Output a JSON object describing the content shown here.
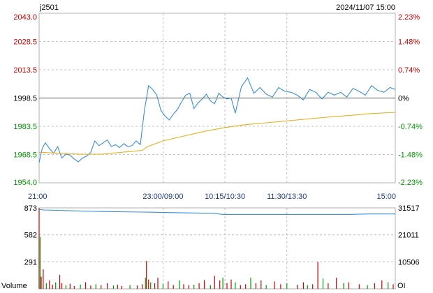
{
  "header": {
    "symbol": "j2501",
    "datetime": "2024/11/07 15:00"
  },
  "colors": {
    "price_line": "#3a8fd8",
    "avg_line": "#e8b020",
    "up": "#cc0000",
    "down": "#009900",
    "flat": "#000000",
    "grid": "#b0b0b0",
    "axis_time": "#1e3a8a",
    "open_interest": "#3a8fd8"
  },
  "chart_data": [
    {
      "type": "line",
      "title": "",
      "prev_close": 1998.5,
      "ylim": [
        1954.0,
        2043.0
      ],
      "y_ticks": [
        {
          "price": "2043.0",
          "pct": "2.23%",
          "dir": "up"
        },
        {
          "price": "2028.5",
          "pct": "1.48%",
          "dir": "up"
        },
        {
          "price": "2013.5",
          "pct": "0.74%",
          "dir": "up"
        },
        {
          "price": "1998.5",
          "pct": "0%",
          "dir": "flat"
        },
        {
          "price": "1983.5",
          "pct": "-0.74%",
          "dir": "down"
        },
        {
          "price": "1968.5",
          "pct": "-1.48%",
          "dir": "down"
        },
        {
          "price": "1954.0",
          "pct": "-2.23%",
          "dir": "down"
        }
      ],
      "x_ticks": [
        "21:00",
        "23:00/09:00",
        "10:15/10:30",
        "11:30/13:30",
        "15:00"
      ],
      "session_points": 345,
      "series": [
        {
          "role": "price",
          "x": [
            0,
            3,
            6,
            10,
            14,
            18,
            22,
            26,
            30,
            34,
            38,
            42,
            46,
            50,
            54,
            58,
            62,
            66,
            70,
            74,
            78,
            82,
            86,
            90,
            94,
            98,
            102,
            106,
            110,
            114,
            118,
            122,
            126,
            130,
            134,
            138,
            142,
            146,
            150,
            154,
            158,
            162,
            166,
            170,
            174,
            178,
            182,
            186,
            190,
            196,
            202,
            208,
            214,
            220,
            226,
            232,
            238,
            244,
            250,
            256,
            262,
            268,
            274,
            280,
            286,
            292,
            298,
            304,
            310,
            316,
            322,
            328,
            334,
            340,
            345
          ],
          "values": [
            1964.5,
            1972.0,
            1975.0,
            1972.0,
            1969.5,
            1973.0,
            1967.0,
            1969.0,
            1968.5,
            1966.5,
            1965.0,
            1967.0,
            1968.0,
            1970.0,
            1976.0,
            1973.5,
            1975.0,
            1976.5,
            1973.0,
            1974.0,
            1972.5,
            1974.5,
            1973.0,
            1973.5,
            1976.0,
            1974.0,
            1992.0,
            2005.0,
            2003.0,
            2000.0,
            1992.0,
            1989.0,
            1987.0,
            1990.0,
            1992.5,
            1996.5,
            2000.0,
            2001.0,
            1993.0,
            1996.0,
            1998.0,
            2000.5,
            1997.0,
            1995.5,
            2001.0,
            1999.0,
            1998.0,
            1998.5,
            1990.5,
            2004.5,
            2009.0,
            2001.0,
            2004.0,
            2000.5,
            1999.0,
            2004.0,
            2002.0,
            2001.5,
            2000.0,
            1997.5,
            2003.0,
            2001.5,
            1998.0,
            2001.5,
            2000.0,
            2001.5,
            1999.0,
            2003.5,
            2002.0,
            2000.0,
            2005.0,
            2002.5,
            2001.5,
            2004.0,
            2003.0
          ]
        },
        {
          "role": "average",
          "x": [
            0,
            20,
            40,
            60,
            80,
            100,
            105,
            120,
            140,
            160,
            180,
            200,
            220,
            240,
            260,
            280,
            300,
            320,
            345
          ],
          "values": [
            1970.0,
            1969.5,
            1969.0,
            1969.0,
            1970.0,
            1971.0,
            1973.0,
            1976.0,
            1978.5,
            1981.0,
            1983.0,
            1984.5,
            1985.5,
            1986.5,
            1987.5,
            1988.5,
            1989.3,
            1990.3,
            1991.0
          ]
        }
      ]
    },
    {
      "type": "bar",
      "title": "",
      "ylabel": "Volume",
      "right_label": "OI",
      "ylim": [
        0,
        873
      ],
      "y_ticks_left": [
        "873",
        "582",
        "291"
      ],
      "y_ticks_right": [
        "31517",
        "21011",
        "10506"
      ],
      "open_interest": {
        "ylim": [
          0,
          31517
        ],
        "x": [
          0,
          5,
          30,
          60,
          100,
          105,
          140,
          170,
          178,
          200,
          260,
          300,
          320,
          345
        ],
        "values": [
          30900,
          30700,
          30400,
          30100,
          29900,
          29850,
          29600,
          29400,
          28950,
          28950,
          28950,
          28950,
          29150,
          29150
        ]
      },
      "volume": {
        "x": [
          0,
          1,
          2,
          4,
          7,
          10,
          13,
          16,
          20,
          22,
          26,
          30,
          34,
          40,
          45,
          50,
          55,
          60,
          66,
          72,
          76,
          80,
          88,
          95,
          100,
          103,
          104,
          106,
          108,
          112,
          115,
          120,
          125,
          130,
          136,
          140,
          145,
          150,
          155,
          160,
          166,
          170,
          175,
          178,
          182,
          186,
          190,
          195,
          200,
          205,
          210,
          215,
          220,
          228,
          234,
          240,
          250,
          256,
          260,
          265,
          270,
          275,
          280,
          288,
          295,
          300,
          310,
          318,
          325,
          332,
          338,
          343
        ],
        "values": [
          873,
          560,
          130,
          210,
          60,
          90,
          45,
          70,
          150,
          60,
          40,
          55,
          30,
          45,
          70,
          35,
          50,
          40,
          60,
          35,
          45,
          30,
          40,
          35,
          50,
          120,
          300,
          100,
          70,
          60,
          120,
          55,
          80,
          40,
          90,
          50,
          40,
          45,
          60,
          95,
          40,
          140,
          90,
          120,
          60,
          100,
          70,
          40,
          50,
          120,
          60,
          90,
          40,
          80,
          50,
          60,
          45,
          70,
          40,
          50,
          290,
          110,
          60,
          120,
          60,
          70,
          50,
          40,
          60,
          90,
          70,
          50
        ]
      }
    }
  ]
}
